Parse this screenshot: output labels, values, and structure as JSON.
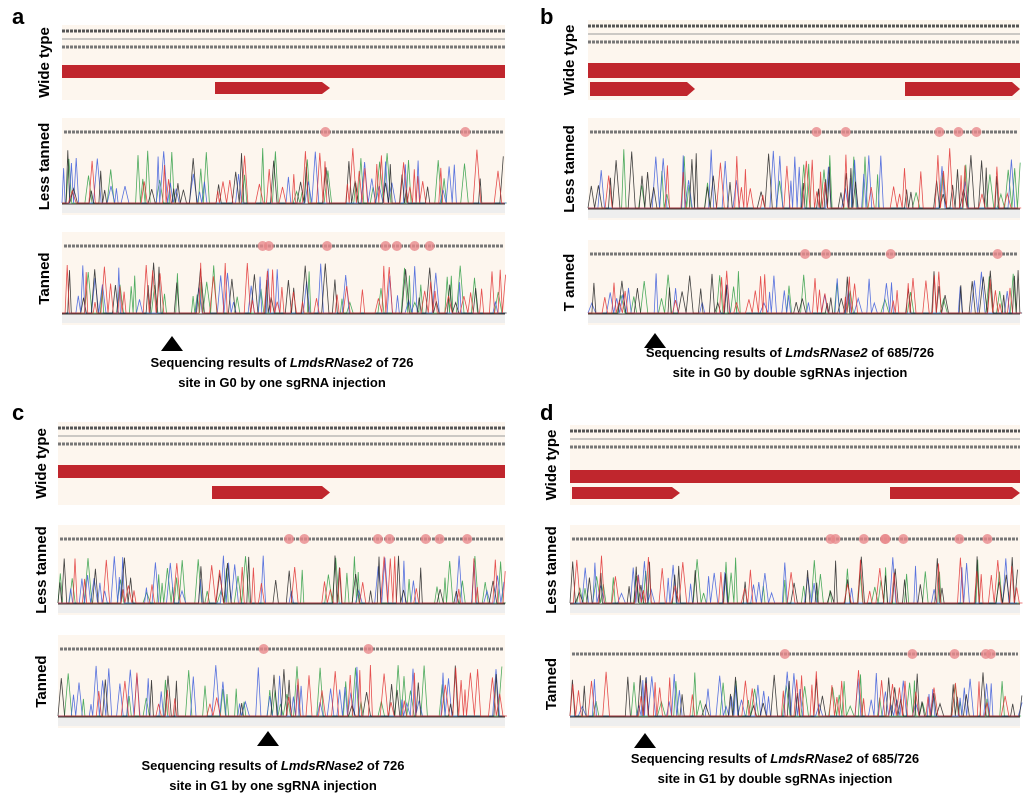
{
  "panels": [
    {
      "label": "a",
      "rows": [
        "Wide type",
        "Less tanned",
        "Tanned"
      ],
      "caption": {
        "pre": "Sequencing results of ",
        "gene": "LmdsRNase2",
        "post": " of 726",
        "line2": "site in G0  by one sgRNA injection"
      }
    },
    {
      "label": "b",
      "rows": [
        "Wide type",
        "Less tanned",
        "T anned"
      ],
      "caption": {
        "pre": "Sequencing results of ",
        "gene": "LmdsRNase2",
        "post": " of 685/726",
        "line2": "site in G0 by double sgRNAs injection"
      }
    },
    {
      "label": "c",
      "rows": [
        "Wide type",
        "Less tanned",
        "Tanned"
      ],
      "caption": {
        "pre": "Sequencing results of ",
        "gene": "LmdsRNase2",
        "post": " of 726",
        "line2": "site in G1  by one sgRNA injection"
      }
    },
    {
      "label": "d",
      "rows": [
        "Wide type",
        "Less tanned",
        "Tanned"
      ],
      "caption": {
        "pre": "Sequencing results of ",
        "gene": "LmdsRNase2",
        "post": " of 685/726",
        "line2": "site in G1 by double sgRNAs injection"
      }
    }
  ]
}
